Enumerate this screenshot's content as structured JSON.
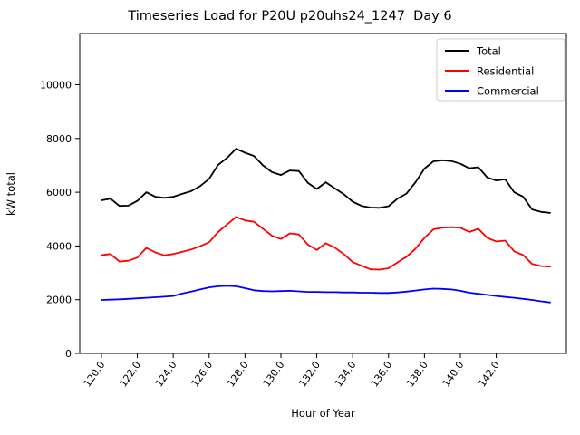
{
  "chart_data": {
    "type": "line",
    "title": "Timeseries Load for P20U p20uhs24_1247  Day 6",
    "xlabel": "Hour of Year",
    "ylabel": "kW total",
    "grid": false,
    "xlim": [
      118.79,
      145.91
    ],
    "ylim": [
      0,
      11906
    ],
    "x_ticks": [
      120,
      122,
      124,
      126,
      128,
      130,
      132,
      134,
      136,
      138,
      140,
      142
    ],
    "x_tick_labels": [
      "120.0",
      "122.0",
      "124.0",
      "126.0",
      "128.0",
      "130.0",
      "132.0",
      "134.0",
      "136.0",
      "138.0",
      "140.0",
      "142.0"
    ],
    "y_ticks": [
      0,
      2000,
      4000,
      6000,
      8000,
      10000
    ],
    "y_tick_labels": [
      "0",
      "2000",
      "4000",
      "6000",
      "8000",
      "10000"
    ],
    "x": [
      120.0,
      120.5,
      121.0,
      121.5,
      122.0,
      122.5,
      123.0,
      123.5,
      124.0,
      124.5,
      125.0,
      125.5,
      126.0,
      126.5,
      127.0,
      127.5,
      128.0,
      128.5,
      129.0,
      129.5,
      130.0,
      130.5,
      131.0,
      131.5,
      132.0,
      132.5,
      133.0,
      133.5,
      134.0,
      134.5,
      135.0,
      135.5,
      136.0,
      136.5,
      137.0,
      137.5,
      138.0,
      138.5,
      139.0,
      139.5,
      140.0,
      140.5,
      141.0,
      141.5,
      142.0,
      142.5,
      143.0,
      143.5,
      144.0,
      144.5,
      145.0
    ],
    "series": [
      {
        "name": "Total",
        "color": "#000000",
        "values": [
          5700,
          5760,
          5490,
          5500,
          5680,
          6000,
          5830,
          5790,
          5830,
          5940,
          6040,
          6230,
          6500,
          7020,
          7280,
          7620,
          7470,
          7350,
          7000,
          6750,
          6640,
          6810,
          6790,
          6350,
          6120,
          6370,
          6150,
          5930,
          5650,
          5490,
          5430,
          5420,
          5480,
          5760,
          5950,
          6370,
          6880,
          7150,
          7190,
          7160,
          7060,
          6890,
          6930,
          6550,
          6440,
          6480,
          6000,
          5830,
          5360,
          5270,
          5230
        ]
      },
      {
        "name": "Residential",
        "color": "#ff0000",
        "values": [
          3660,
          3700,
          3420,
          3450,
          3570,
          3930,
          3760,
          3650,
          3700,
          3780,
          3870,
          3990,
          4140,
          4520,
          4800,
          5080,
          4950,
          4900,
          4640,
          4380,
          4260,
          4470,
          4430,
          4050,
          3850,
          4100,
          3940,
          3700,
          3400,
          3260,
          3130,
          3120,
          3170,
          3390,
          3600,
          3900,
          4300,
          4620,
          4680,
          4700,
          4680,
          4520,
          4640,
          4300,
          4170,
          4200,
          3800,
          3660,
          3330,
          3250,
          3230
        ]
      },
      {
        "name": "Commercial",
        "color": "#0000ff",
        "values": [
          1990,
          2000,
          2015,
          2030,
          2050,
          2070,
          2090,
          2110,
          2140,
          2230,
          2300,
          2380,
          2460,
          2500,
          2520,
          2500,
          2430,
          2350,
          2320,
          2310,
          2320,
          2330,
          2310,
          2290,
          2290,
          2280,
          2280,
          2270,
          2270,
          2260,
          2260,
          2250,
          2250,
          2270,
          2300,
          2340,
          2380,
          2410,
          2400,
          2380,
          2330,
          2260,
          2220,
          2180,
          2140,
          2100,
          2070,
          2030,
          1990,
          1940,
          1900
        ]
      }
    ],
    "legend": {
      "position": "upper right",
      "entries": [
        "Total",
        "Residential",
        "Commercial"
      ]
    },
    "axis_color": "#000000",
    "legend_border_color": "#cccccc"
  }
}
